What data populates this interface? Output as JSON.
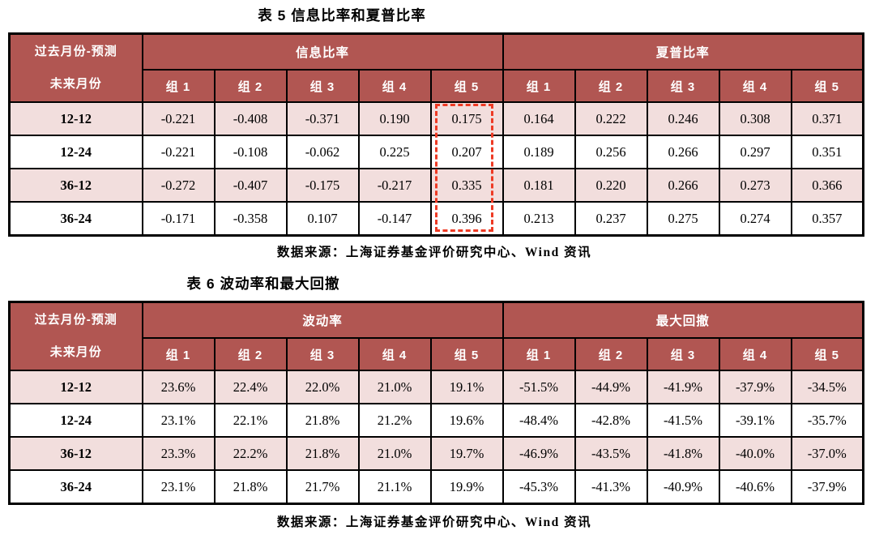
{
  "colors": {
    "header_bg": "#b15652",
    "header_text": "#ffffff",
    "row_alt_bg": "#f2dedd",
    "row_bg": "#ffffff",
    "border_color": "#000000",
    "highlight": "#ee3a24",
    "text": "#000000"
  },
  "tables": [
    {
      "title": "表 5 信息比率和夏普比率",
      "corner": [
        "过去月份-预测",
        "未来月份"
      ],
      "sections": [
        {
          "label": "信息比率",
          "columns": [
            "组 1",
            "组 2",
            "组 3",
            "组 4",
            "组 5"
          ]
        },
        {
          "label": "夏普比率",
          "columns": [
            "组 1",
            "组 2",
            "组 3",
            "组 4",
            "组 5"
          ]
        }
      ],
      "rows": [
        {
          "label": "12-12",
          "values": [
            "-0.221",
            "-0.408",
            "-0.371",
            "0.190",
            "0.175",
            "0.164",
            "0.222",
            "0.246",
            "0.308",
            "0.371"
          ]
        },
        {
          "label": "12-24",
          "values": [
            "-0.221",
            "-0.108",
            "-0.062",
            "0.225",
            "0.207",
            "0.189",
            "0.256",
            "0.266",
            "0.297",
            "0.351"
          ]
        },
        {
          "label": "36-12",
          "values": [
            "-0.272",
            "-0.407",
            "-0.175",
            "-0.217",
            "0.335",
            "0.181",
            "0.220",
            "0.266",
            "0.273",
            "0.366"
          ]
        },
        {
          "label": "36-24",
          "values": [
            "-0.171",
            "-0.358",
            "0.107",
            "-0.147",
            "0.396",
            "0.213",
            "0.237",
            "0.275",
            "0.274",
            "0.357"
          ]
        }
      ],
      "highlight": {
        "section": "信息比率",
        "column": "组 5",
        "column_index": 4
      },
      "source": "数据来源：上海证券基金评价研究中心、Wind 资讯"
    },
    {
      "title": "表 6 波动率和最大回撤",
      "corner": [
        "过去月份-预测",
        "未来月份"
      ],
      "sections": [
        {
          "label": "波动率",
          "columns": [
            "组 1",
            "组 2",
            "组 3",
            "组 4",
            "组 5"
          ]
        },
        {
          "label": "最大回撤",
          "columns": [
            "组 1",
            "组 2",
            "组 3",
            "组 4",
            "组 5"
          ]
        }
      ],
      "rows": [
        {
          "label": "12-12",
          "values": [
            "23.6%",
            "22.4%",
            "22.0%",
            "21.0%",
            "19.1%",
            "-51.5%",
            "-44.9%",
            "-41.9%",
            "-37.9%",
            "-34.5%"
          ]
        },
        {
          "label": "12-24",
          "values": [
            "23.1%",
            "22.1%",
            "21.8%",
            "21.2%",
            "19.6%",
            "-48.4%",
            "-42.8%",
            "-41.5%",
            "-39.1%",
            "-35.7%"
          ]
        },
        {
          "label": "36-12",
          "values": [
            "23.3%",
            "22.2%",
            "21.8%",
            "21.0%",
            "19.7%",
            "-46.9%",
            "-43.5%",
            "-41.8%",
            "-40.0%",
            "-37.0%"
          ]
        },
        {
          "label": "36-24",
          "values": [
            "23.1%",
            "21.8%",
            "21.7%",
            "21.1%",
            "19.9%",
            "-45.3%",
            "-41.3%",
            "-40.9%",
            "-40.6%",
            "-37.9%"
          ]
        }
      ],
      "source": "数据来源：上海证券基金评价研究中心、Wind 资讯"
    }
  ]
}
